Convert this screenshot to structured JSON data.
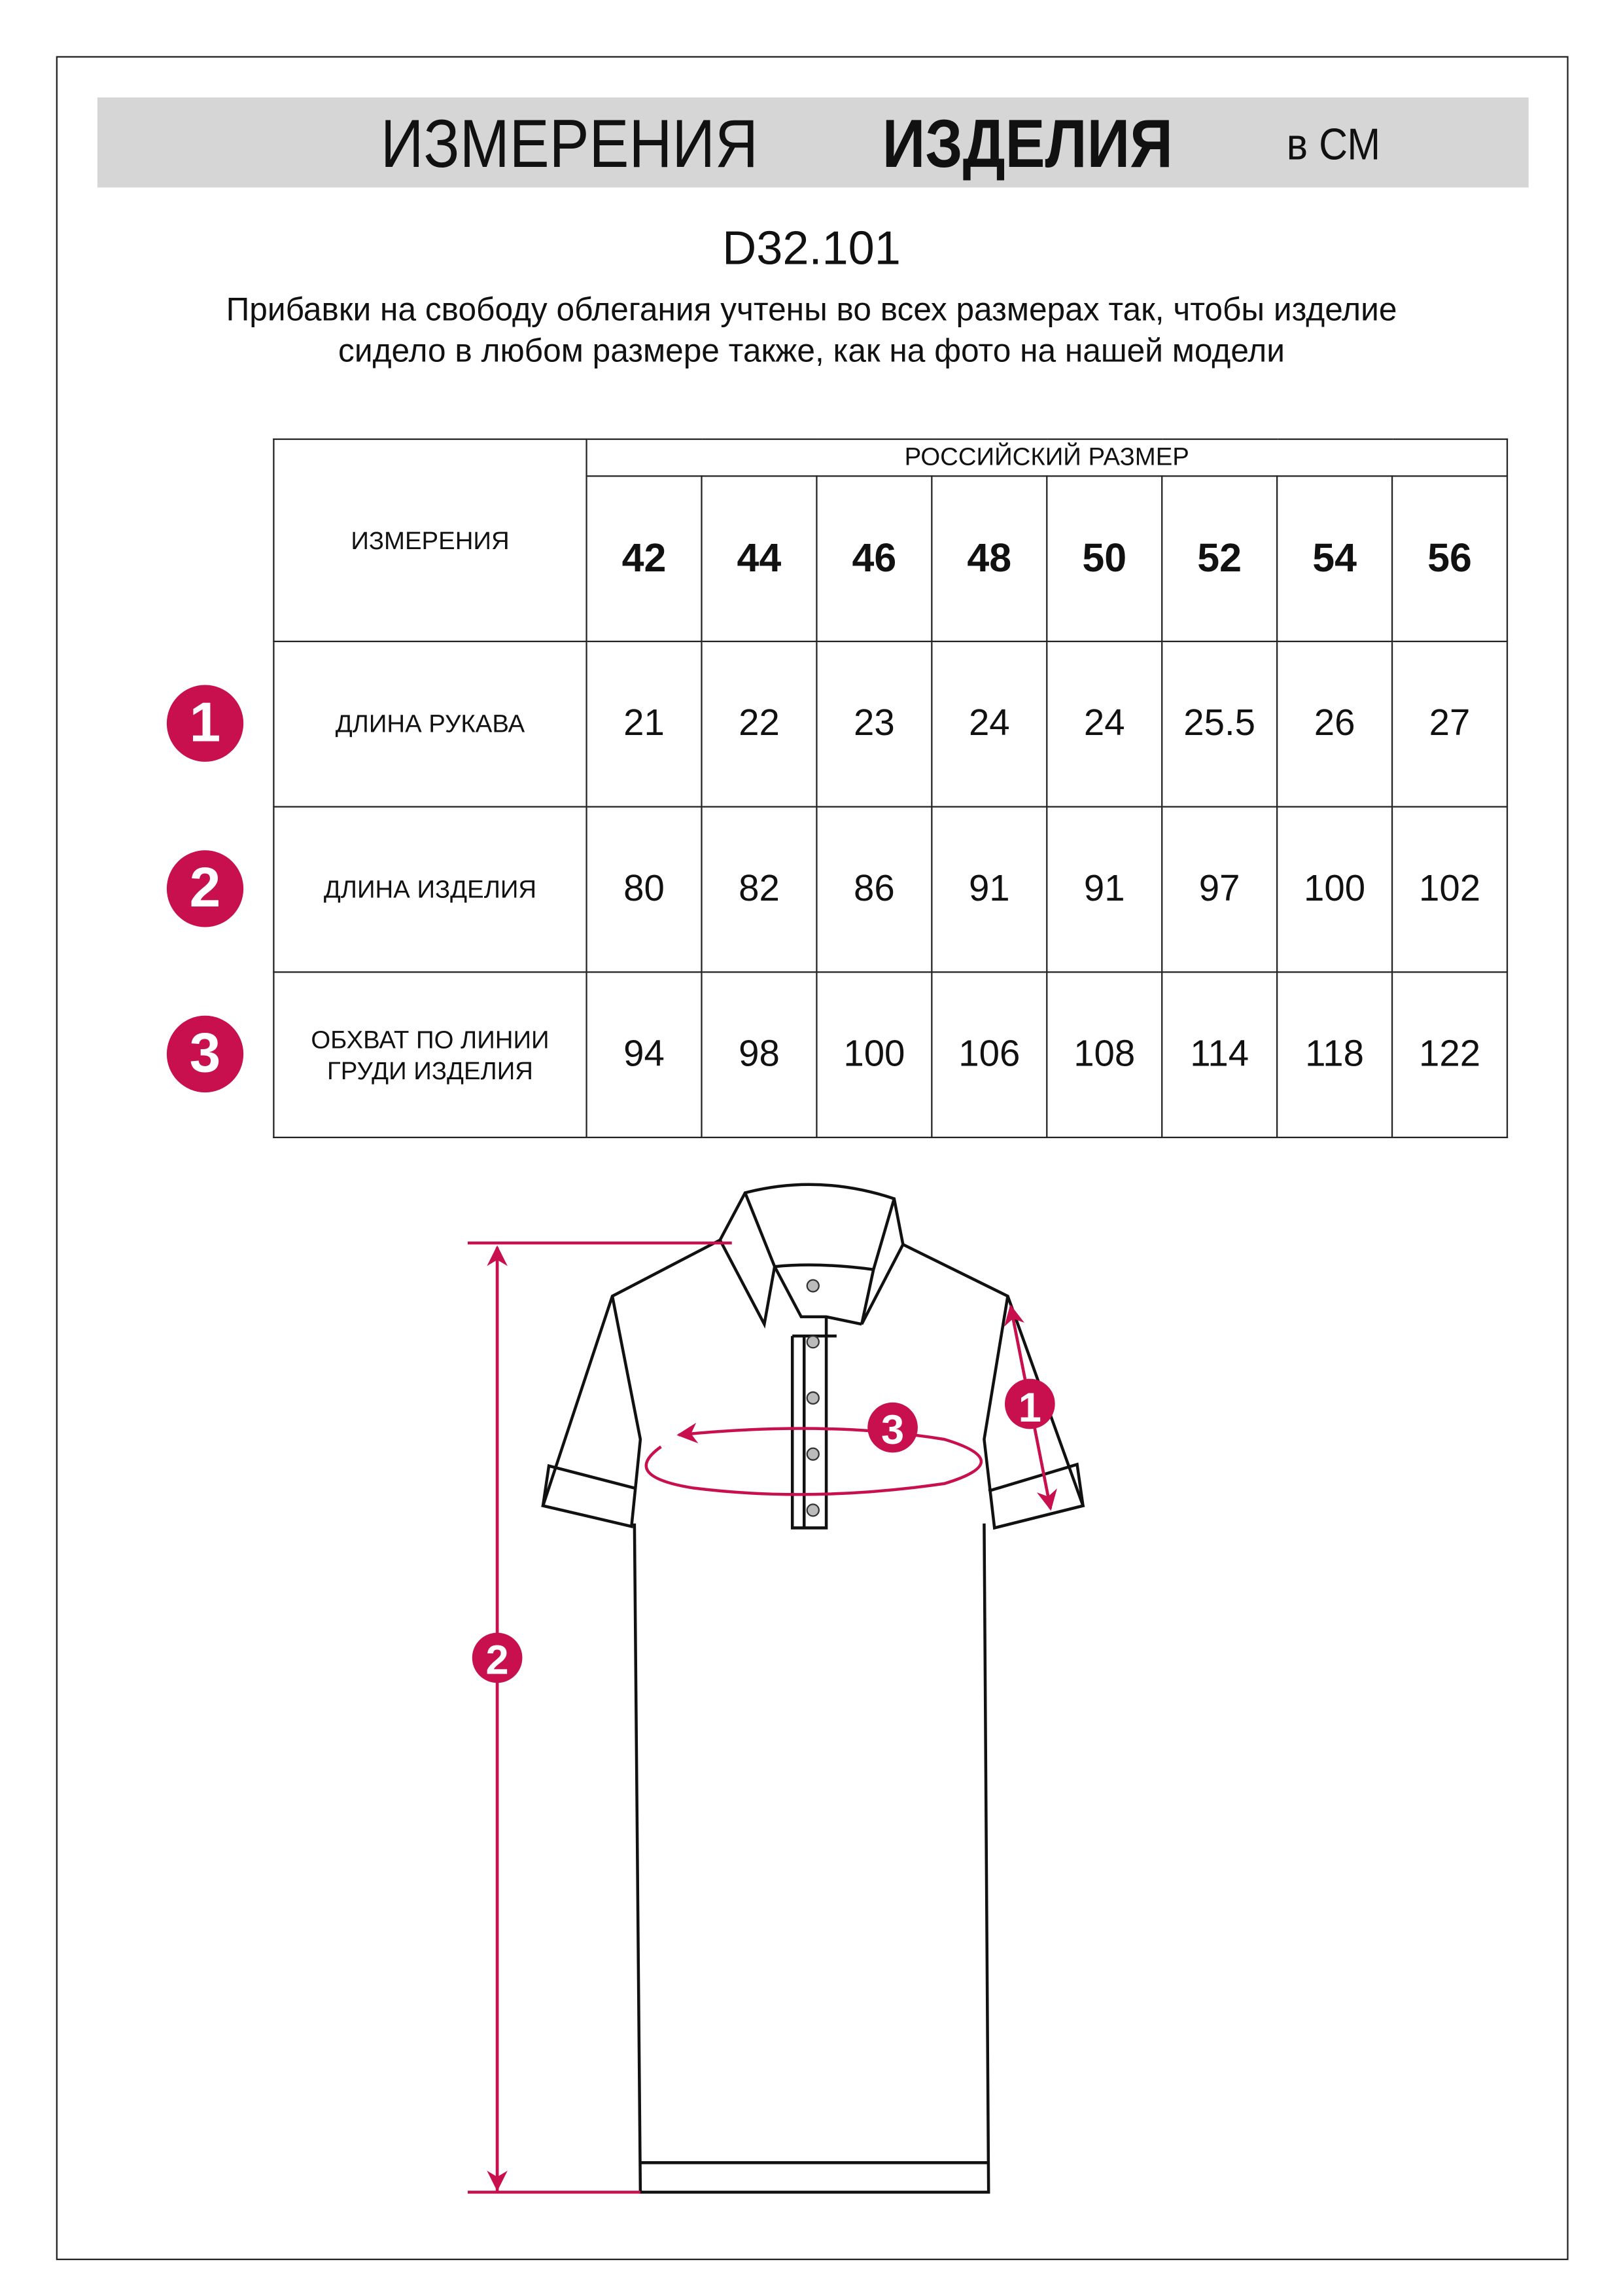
{
  "header": {
    "title_light": "ИЗМЕРЕНИЯ",
    "title_bold": "ИЗДЕЛИЯ",
    "unit": "в СМ"
  },
  "article": "D32.101",
  "note": "Прибавки на свободу облегания учтены во всех размерах так, чтобы изделие сидело в любом размере также, как на фото на нашей модели",
  "table": {
    "measure_header": "ИЗМЕРЕНИЯ",
    "size_header": "РОССИЙСКИЙ РАЗМЕР",
    "sizes": [
      "42",
      "44",
      "46",
      "48",
      "50",
      "52",
      "54",
      "56"
    ],
    "rows": [
      {
        "num": "1",
        "label": "ДЛИНА РУКАВА",
        "values": [
          "21",
          "22",
          "23",
          "24",
          "24",
          "25.5",
          "26",
          "27"
        ]
      },
      {
        "num": "2",
        "label": "ДЛИНА ИЗДЕЛИЯ",
        "values": [
          "80",
          "82",
          "86",
          "91",
          "91",
          "97",
          "100",
          "102"
        ]
      },
      {
        "num": "3",
        "label": "ОБХВАТ ПО ЛИНИИ ГРУДИ ИЗДЕЛИЯ",
        "values": [
          "94",
          "98",
          "100",
          "106",
          "108",
          "114",
          "118",
          "122"
        ]
      }
    ]
  },
  "diagram": {
    "markers": [
      "1",
      "2",
      "3"
    ]
  },
  "colors": {
    "accent": "#c8104f",
    "header_bg": "#d6d6d6"
  }
}
